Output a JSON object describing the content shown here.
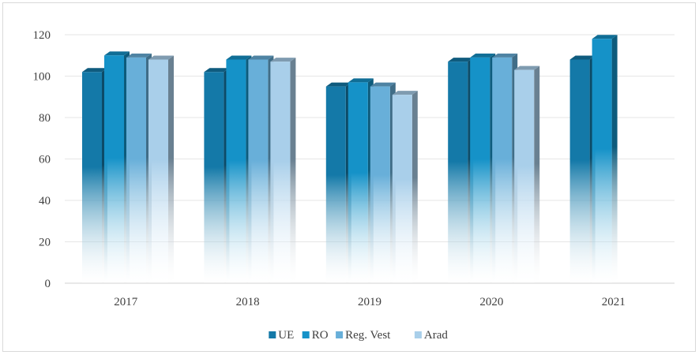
{
  "chart_data": {
    "type": "bar",
    "style": "3d-clustered-column",
    "categories": [
      "2017",
      "2018",
      "2019",
      "2020",
      "2021"
    ],
    "series": [
      {
        "name": "UE",
        "color": "#1479a8",
        "values": [
          102,
          102,
          95,
          107,
          108
        ]
      },
      {
        "name": "RO",
        "color": "#1592c8",
        "values": [
          110,
          108,
          97,
          109,
          118
        ]
      },
      {
        "name": "Reg. Vest",
        "color": "#68afd9",
        "values": [
          109,
          108,
          95,
          109,
          null
        ]
      },
      {
        "name": "Arad",
        "color": "#a9cfea",
        "values": [
          108,
          107,
          91,
          103,
          null
        ]
      }
    ],
    "yticks": [
      "0",
      "20",
      "40",
      "60",
      "80",
      "100",
      "120"
    ],
    "ylim": [
      0,
      120
    ],
    "grid": true,
    "legend_position": "bottom"
  }
}
